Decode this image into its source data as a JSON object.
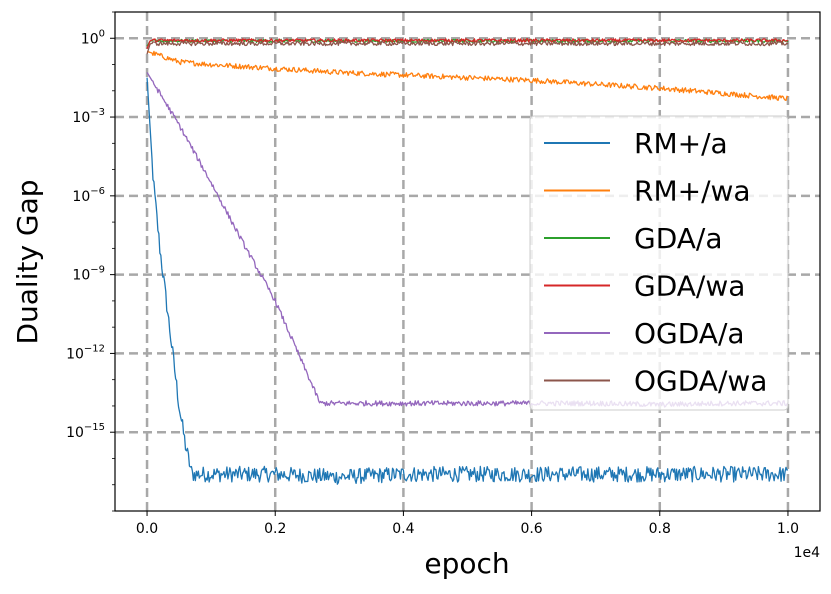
{
  "chart_data": {
    "type": "line",
    "title": "",
    "xlabel": "epoch",
    "ylabel": "Duality Gap",
    "x_offset_label": "1e4",
    "xlim": [
      -0.05,
      1.05
    ],
    "xticks": [
      0.0,
      0.2,
      0.4,
      0.6,
      0.8,
      1.0
    ],
    "xtick_labels": [
      "0.0",
      "0.2",
      "0.4",
      "0.6",
      "0.8",
      "1.0"
    ],
    "yscale": "log",
    "ylim_exp": [
      -18.0,
      1.0
    ],
    "yticks_exp": [
      0,
      -3,
      -6,
      -9,
      -12,
      -15
    ],
    "ytick_labels": [
      {
        "base": "10",
        "exp": "0"
      },
      {
        "base": "10",
        "exp": "−3"
      },
      {
        "base": "10",
        "exp": "−6"
      },
      {
        "base": "10",
        "exp": "−9"
      },
      {
        "base": "10",
        "exp": "−12"
      },
      {
        "base": "10",
        "exp": "−15"
      }
    ],
    "grid": true,
    "legend_position": "right",
    "series": [
      {
        "name": "RM+/a",
        "color": "#1f77b4",
        "x": [
          0.0,
          0.01,
          0.02,
          0.03,
          0.04,
          0.05,
          0.06,
          0.07,
          0.1,
          0.2,
          0.3,
          0.4,
          0.5,
          0.6,
          0.7,
          0.8,
          0.9,
          1.0
        ],
        "log10_y": [
          -1.5,
          -5.5,
          -8.0,
          -10.0,
          -12.0,
          -14.0,
          -15.5,
          -16.6,
          -16.6,
          -16.6,
          -16.7,
          -16.6,
          -16.6,
          -16.6,
          -16.6,
          -16.6,
          -16.6,
          -16.6
        ],
        "noise": 0.3
      },
      {
        "name": "RM+/wa",
        "color": "#ff7f0e",
        "x": [
          0.0,
          0.05,
          0.1,
          0.2,
          0.3,
          0.4,
          0.5,
          0.6,
          0.7,
          0.8,
          0.9,
          1.0
        ],
        "log10_y": [
          -0.5,
          -0.9,
          -1.0,
          -1.15,
          -1.3,
          -1.4,
          -1.5,
          -1.6,
          -1.75,
          -1.9,
          -2.1,
          -2.3
        ],
        "noise": 0.1
      },
      {
        "name": "GDA/a",
        "color": "#2ca02c",
        "x": [
          0.0,
          0.005,
          0.1,
          0.3,
          0.5,
          0.7,
          0.9,
          1.0
        ],
        "log10_y": [
          -0.3,
          -0.1,
          -0.1,
          -0.1,
          -0.1,
          -0.1,
          -0.1,
          -0.1
        ],
        "noise": 0.06
      },
      {
        "name": "GDA/wa",
        "color": "#d62728",
        "x": [
          0.0,
          0.005,
          0.1,
          0.3,
          0.5,
          0.7,
          0.9,
          1.0
        ],
        "log10_y": [
          -0.4,
          -0.08,
          -0.08,
          -0.08,
          -0.08,
          -0.08,
          -0.08,
          -0.08
        ],
        "noise": 0.06
      },
      {
        "name": "OGDA/a",
        "color": "#9467bd",
        "x": [
          0.0,
          0.05,
          0.1,
          0.15,
          0.2,
          0.27,
          0.3,
          0.4,
          0.5,
          0.6,
          0.7,
          0.8,
          0.9,
          1.0
        ],
        "log10_y": [
          -1.3,
          -3.3,
          -5.5,
          -7.8,
          -10.0,
          -13.9,
          -13.9,
          -13.9,
          -13.9,
          -13.9,
          -13.9,
          -13.95,
          -13.9,
          -13.9
        ],
        "noise": 0.1
      },
      {
        "name": "OGDA/wa",
        "color": "#8c564b",
        "x": [
          0.0,
          0.005,
          0.1,
          0.3,
          0.5,
          0.7,
          0.9,
          1.0
        ],
        "log10_y": [
          -0.6,
          -0.2,
          -0.2,
          -0.2,
          -0.2,
          -0.2,
          -0.2,
          -0.2
        ],
        "noise": 0.08
      }
    ]
  }
}
